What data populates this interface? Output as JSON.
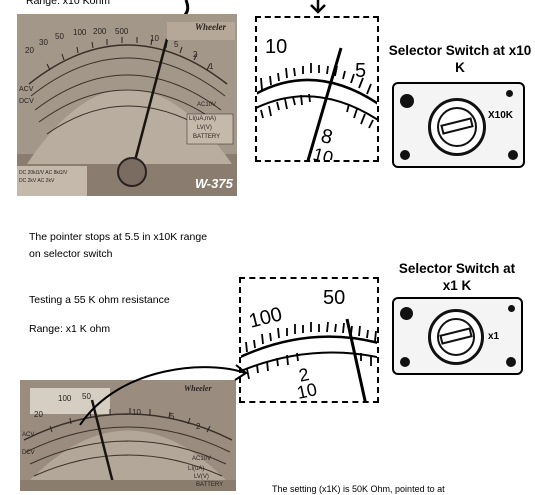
{
  "top": {
    "range_text": "Range: x10 Kohm",
    "photo": {
      "brand": "Wheeler",
      "model": "W-375",
      "scale_numbers": [
        "20",
        "30",
        "50",
        "100",
        "200",
        "500",
        "10",
        "5",
        "2",
        "1"
      ],
      "labels": [
        "ACV",
        "DCV",
        "LI(uA,mA)",
        "LV(V)",
        "BATTERY",
        "AC10V",
        "DC 20kΩ/V  AC 8kΩ/V",
        "DC 2kV  AC 2kV"
      ]
    },
    "zoom": {
      "scale_numbers": [
        "10",
        "5",
        "8",
        "10"
      ]
    },
    "switch_title": "Selector Switch at x10 K",
    "switch_label": "X10K"
  },
  "middle": {
    "result_text": "The pointer stops at 5.5 in x10K range on selector switch",
    "test_text": "Testing a 55 K ohm resistance",
    "range_text": "Range: x1 K ohm"
  },
  "bottom": {
    "zoom": {
      "scale_numbers": [
        "100",
        "50",
        "2",
        "10"
      ]
    },
    "switch_title": "Selector Switch at x1 K",
    "switch_label": "x1",
    "photo": {
      "brand": "Wheeler",
      "scale_numbers": [
        "100",
        "50",
        "20",
        "10",
        "5",
        "2"
      ],
      "labels": [
        "ACV",
        "DCV",
        "AC10V",
        "LI(uA)",
        "LV(V)",
        "BATTERY"
      ]
    },
    "footer_text": "The setting (x1K) is 50K Ohm, pointed to at"
  }
}
